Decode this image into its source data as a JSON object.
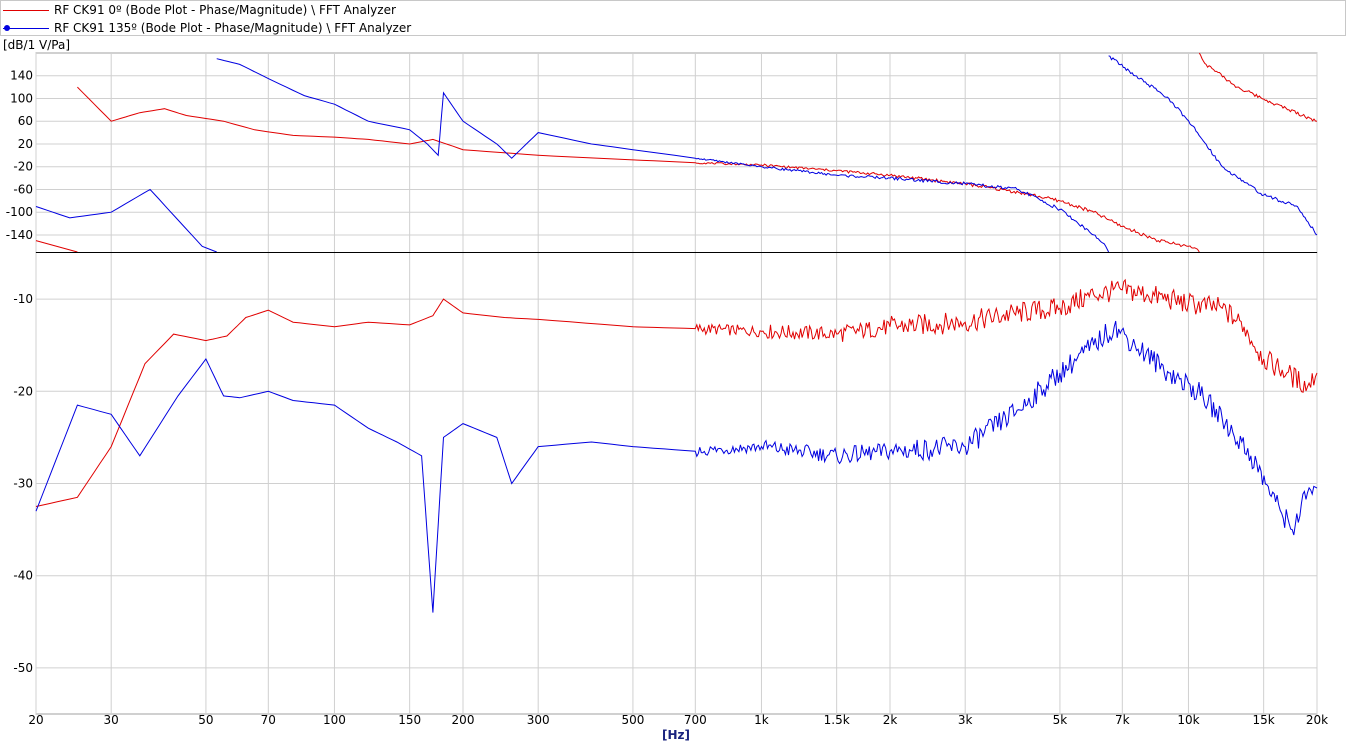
{
  "legend": [
    {
      "label": "RF CK91 0º (Bode Plot - Phase/Magnitude) \\ FFT Analyzer",
      "color": "#e00000",
      "marker": false
    },
    {
      "label": "RF CK91 135º (Bode Plot - Phase/Magnitude) \\ FFT Analyzer",
      "color": "#0000e0",
      "marker": true
    }
  ],
  "unit_label": "[dB/1 V/Pa]",
  "x_unit_label": "[Hz]",
  "chart_data": [
    {
      "type": "line",
      "name": "phase",
      "x_scale": "log",
      "xlim": [
        20,
        20000
      ],
      "ylim": [
        -170,
        180
      ],
      "yticks": [
        140,
        100,
        60,
        20,
        -20,
        -60,
        -100,
        -140
      ],
      "grid": true,
      "series": [
        {
          "name": "RF CK91 0º",
          "color": "#e00000",
          "points": [
            [
              20,
              -150
            ],
            [
              25,
              120
            ],
            [
              30,
              60
            ],
            [
              35,
              75
            ],
            [
              40,
              82
            ],
            [
              45,
              70
            ],
            [
              55,
              60
            ],
            [
              65,
              45
            ],
            [
              80,
              35
            ],
            [
              100,
              32
            ],
            [
              120,
              28
            ],
            [
              150,
              20
            ],
            [
              170,
              28
            ],
            [
              200,
              10
            ],
            [
              300,
              0
            ],
            [
              500,
              -8
            ],
            [
              700,
              -13
            ],
            [
              1000,
              -17
            ],
            [
              1500,
              -27
            ],
            [
              2000,
              -35
            ],
            [
              3000,
              -50
            ],
            [
              4000,
              -65
            ],
            [
              5000,
              -80
            ],
            [
              6000,
              -100
            ],
            [
              7000,
              -125
            ],
            [
              8500,
              -150
            ],
            [
              10000,
              -160
            ],
            [
              10500,
              -165
            ],
            [
              10600,
              180
            ],
            [
              11000,
              160
            ],
            [
              13000,
              120
            ],
            [
              16000,
              90
            ],
            [
              20000,
              60
            ]
          ]
        },
        {
          "name": "RF CK91 135º",
          "color": "#0000e0",
          "points": [
            [
              20,
              -90
            ],
            [
              24,
              -110
            ],
            [
              30,
              -100
            ],
            [
              37,
              -60
            ],
            [
              49,
              -160
            ],
            [
              53,
              170
            ],
            [
              60,
              160
            ],
            [
              70,
              135
            ],
            [
              85,
              105
            ],
            [
              100,
              90
            ],
            [
              120,
              60
            ],
            [
              150,
              45
            ],
            [
              165,
              20
            ],
            [
              175,
              0
            ],
            [
              180,
              110
            ],
            [
              200,
              60
            ],
            [
              240,
              20
            ],
            [
              260,
              -5
            ],
            [
              300,
              40
            ],
            [
              400,
              20
            ],
            [
              500,
              10
            ],
            [
              700,
              -5
            ],
            [
              1000,
              -20
            ],
            [
              1500,
              -35
            ],
            [
              2000,
              -40
            ],
            [
              3000,
              -50
            ],
            [
              4000,
              -60
            ],
            [
              5000,
              -95
            ],
            [
              6000,
              -140
            ],
            [
              6400,
              -160
            ],
            [
              6500,
              175
            ],
            [
              7500,
              140
            ],
            [
              9000,
              100
            ],
            [
              10500,
              40
            ],
            [
              12000,
              -20
            ],
            [
              15000,
              -70
            ],
            [
              18000,
              -90
            ],
            [
              20000,
              -140
            ]
          ]
        }
      ]
    },
    {
      "type": "line",
      "name": "magnitude",
      "x_scale": "log",
      "xlim": [
        20,
        20000
      ],
      "ylim": [
        -55,
        -5
      ],
      "yticks": [
        -10,
        -20,
        -30,
        -40,
        -50
      ],
      "xticks": [
        20,
        30,
        50,
        70,
        100,
        150,
        200,
        300,
        500,
        700,
        1000,
        1500,
        2000,
        3000,
        5000,
        7000,
        10000,
        15000,
        20000
      ],
      "xtick_labels": [
        "20",
        "30",
        "50",
        "70",
        "100",
        "150",
        "200",
        "300",
        "500",
        "700",
        "1k",
        "1.5k",
        "2k",
        "3k",
        "5k",
        "7k",
        "10k",
        "15k",
        "20k"
      ],
      "grid": true,
      "series": [
        {
          "name": "RF CK91 0º",
          "color": "#e00000",
          "points": [
            [
              20,
              -32.5
            ],
            [
              25,
              -31.5
            ],
            [
              30,
              -26
            ],
            [
              36,
              -17
            ],
            [
              42,
              -13.8
            ],
            [
              50,
              -14.5
            ],
            [
              56,
              -14
            ],
            [
              62,
              -12
            ],
            [
              70,
              -11.2
            ],
            [
              80,
              -12.5
            ],
            [
              100,
              -13
            ],
            [
              120,
              -12.5
            ],
            [
              150,
              -12.8
            ],
            [
              170,
              -11.8
            ],
            [
              180,
              -10
            ],
            [
              200,
              -11.5
            ],
            [
              250,
              -12
            ],
            [
              300,
              -12.2
            ],
            [
              500,
              -13
            ],
            [
              700,
              -13.2
            ],
            [
              1000,
              -13.5
            ],
            [
              1500,
              -13.8
            ],
            [
              2000,
              -13
            ],
            [
              3000,
              -12.5
            ],
            [
              4000,
              -11.5
            ],
            [
              5000,
              -11
            ],
            [
              6000,
              -9.5
            ],
            [
              7000,
              -9
            ],
            [
              8000,
              -9.5
            ],
            [
              10000,
              -10.5
            ],
            [
              12000,
              -11
            ],
            [
              13500,
              -13
            ],
            [
              15000,
              -16.5
            ],
            [
              17000,
              -18
            ],
            [
              19000,
              -19.5
            ],
            [
              20000,
              -18
            ]
          ]
        },
        {
          "name": "RF CK91 135º",
          "color": "#0000e0",
          "points": [
            [
              20,
              -33
            ],
            [
              25,
              -21.5
            ],
            [
              30,
              -22.5
            ],
            [
              35,
              -27
            ],
            [
              43,
              -20.5
            ],
            [
              50,
              -16.5
            ],
            [
              55,
              -20.5
            ],
            [
              60,
              -20.7
            ],
            [
              70,
              -20
            ],
            [
              80,
              -21
            ],
            [
              100,
              -21.5
            ],
            [
              120,
              -24
            ],
            [
              140,
              -25.5
            ],
            [
              160,
              -27
            ],
            [
              170,
              -44
            ],
            [
              180,
              -25
            ],
            [
              200,
              -23.5
            ],
            [
              240,
              -25
            ],
            [
              260,
              -30
            ],
            [
              300,
              -26
            ],
            [
              400,
              -25.5
            ],
            [
              500,
              -26
            ],
            [
              700,
              -26.5
            ],
            [
              1000,
              -26
            ],
            [
              1500,
              -27
            ],
            [
              2000,
              -26.5
            ],
            [
              3000,
              -26
            ],
            [
              4000,
              -22
            ],
            [
              5000,
              -18
            ],
            [
              6000,
              -15
            ],
            [
              6700,
              -13
            ],
            [
              7500,
              -15
            ],
            [
              9000,
              -18
            ],
            [
              10500,
              -20
            ],
            [
              12000,
              -23
            ],
            [
              14000,
              -27
            ],
            [
              16000,
              -32
            ],
            [
              17500,
              -35
            ],
            [
              19000,
              -31
            ],
            [
              20000,
              -30.5
            ]
          ]
        }
      ]
    }
  ]
}
